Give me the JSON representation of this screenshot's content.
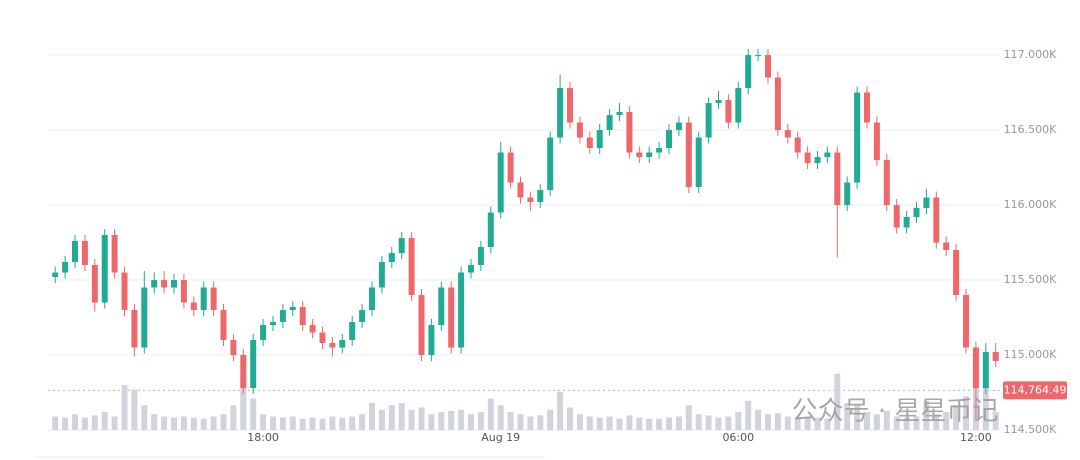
{
  "chart_data": {
    "type": "candlestick",
    "x": [
      "12:45",
      "13:00",
      "13:15",
      "13:30",
      "13:45",
      "14:00",
      "14:15",
      "14:30",
      "14:45",
      "15:00",
      "15:15",
      "15:30",
      "15:45",
      "16:00",
      "16:15",
      "16:30",
      "16:45",
      "17:00",
      "17:15",
      "17:30",
      "17:45",
      "18:00",
      "18:15",
      "18:30",
      "18:45",
      "19:00",
      "19:15",
      "19:30",
      "19:45",
      "20:00",
      "20:15",
      "20:30",
      "20:45",
      "21:00",
      "21:15",
      "21:30",
      "21:45",
      "22:00",
      "22:15",
      "22:30",
      "22:45",
      "23:00",
      "23:15",
      "23:30",
      "23:45",
      "00:00",
      "00:15",
      "00:30",
      "00:45",
      "01:00",
      "01:15",
      "01:30",
      "01:45",
      "02:00",
      "02:15",
      "02:30",
      "02:45",
      "03:00",
      "03:15",
      "03:30",
      "03:45",
      "04:00",
      "04:15",
      "04:30",
      "04:45",
      "05:00",
      "05:15",
      "05:30",
      "05:45",
      "06:00",
      "06:15",
      "06:30",
      "06:45",
      "07:00",
      "07:15",
      "07:30",
      "07:45",
      "08:00",
      "08:15",
      "08:30",
      "08:45",
      "09:00",
      "09:15",
      "09:30",
      "09:45",
      "10:00",
      "10:15",
      "10:30",
      "10:45",
      "11:00",
      "11:15",
      "11:30",
      "11:45",
      "12:00",
      "12:15",
      "12:30"
    ],
    "open": [
      115520,
      115550,
      115620,
      115760,
      115600,
      115350,
      115800,
      115550,
      115300,
      115050,
      115450,
      115500,
      115450,
      115500,
      115350,
      115300,
      115450,
      115300,
      115100,
      115000,
      114780,
      115100,
      115200,
      115220,
      115300,
      115320,
      115200,
      115150,
      115080,
      115050,
      115100,
      115220,
      115300,
      115450,
      115620,
      115680,
      115780,
      115400,
      115000,
      115200,
      115450,
      115050,
      115550,
      115600,
      115720,
      115950,
      116350,
      116150,
      116050,
      116020,
      116100,
      116450,
      116780,
      116550,
      116450,
      116380,
      116500,
      116600,
      116620,
      116350,
      116320,
      116350,
      116380,
      116500,
      116550,
      116120,
      116450,
      116680,
      116700,
      116550,
      116780,
      117000,
      117000,
      116850,
      116500,
      116450,
      116350,
      116280,
      116320,
      116350,
      116000,
      116150,
      116750,
      116550,
      116300,
      116000,
      115850,
      115920,
      115980,
      116050,
      115750,
      115700,
      115400,
      115050,
      114780,
      115020
    ],
    "high": [
      115590,
      115660,
      115800,
      115800,
      115640,
      115840,
      115840,
      115590,
      115340,
      115560,
      115550,
      115560,
      115540,
      115540,
      115390,
      115490,
      115490,
      115340,
      115140,
      115040,
      115140,
      115240,
      115260,
      115340,
      115360,
      115360,
      115240,
      115190,
      115120,
      115140,
      115260,
      115340,
      115490,
      115660,
      115720,
      115820,
      115820,
      115440,
      115240,
      115490,
      115490,
      115590,
      115640,
      115760,
      115990,
      116420,
      116390,
      116190,
      116090,
      116140,
      116490,
      116870,
      116820,
      116590,
      116490,
      116540,
      116640,
      116680,
      116660,
      116390,
      116390,
      116420,
      116540,
      116590,
      116590,
      116490,
      116720,
      116760,
      116740,
      116820,
      117040,
      117040,
      117040,
      116890,
      116540,
      116490,
      116390,
      116360,
      116390,
      116390,
      116190,
      116790,
      116790,
      116590,
      116340,
      116040,
      115960,
      116020,
      116110,
      116090,
      115790,
      115740,
      115440,
      115090,
      115080,
      115080
    ],
    "low": [
      115480,
      115510,
      115580,
      115560,
      115290,
      115310,
      115510,
      115260,
      114990,
      115010,
      115410,
      115410,
      115410,
      115310,
      115260,
      115260,
      115260,
      115060,
      114960,
      114740,
      114740,
      115060,
      115160,
      115180,
      115260,
      115160,
      115110,
      115040,
      114990,
      115010,
      115060,
      115180,
      115260,
      115410,
      115580,
      115640,
      115360,
      114960,
      114960,
      115160,
      115010,
      115010,
      115510,
      115560,
      115680,
      115910,
      116110,
      116010,
      115960,
      115980,
      116060,
      116410,
      116510,
      116410,
      116340,
      116340,
      116460,
      116560,
      116310,
      116280,
      116280,
      116310,
      116340,
      116460,
      116080,
      116080,
      116410,
      116640,
      116510,
      116510,
      116740,
      116960,
      116810,
      116460,
      116410,
      116310,
      116240,
      116240,
      116280,
      115650,
      115960,
      116110,
      116510,
      116260,
      115960,
      115810,
      115810,
      115880,
      115940,
      115710,
      115660,
      115360,
      115010,
      114560,
      114740,
      114920
    ],
    "close": [
      115550,
      115620,
      115760,
      115600,
      115350,
      115800,
      115550,
      115300,
      115050,
      115450,
      115500,
      115450,
      115500,
      115350,
      115300,
      115450,
      115300,
      115100,
      115000,
      114780,
      115100,
      115200,
      115220,
      115300,
      115320,
      115200,
      115150,
      115080,
      115050,
      115100,
      115220,
      115300,
      115450,
      115620,
      115680,
      115780,
      115400,
      115000,
      115200,
      115450,
      115050,
      115550,
      115600,
      115720,
      115950,
      116350,
      116150,
      116050,
      116020,
      116100,
      116450,
      116780,
      116550,
      116450,
      116380,
      116500,
      116600,
      116620,
      116350,
      116320,
      116350,
      116380,
      116500,
      116550,
      116120,
      116450,
      116680,
      116700,
      116550,
      116780,
      117000,
      117000,
      116850,
      116500,
      116450,
      116350,
      116280,
      116320,
      116350,
      116000,
      116150,
      116750,
      116550,
      116300,
      116000,
      115850,
      115920,
      115980,
      116050,
      115750,
      115700,
      115400,
      115050,
      114780,
      115020,
      114960
    ],
    "volume": [
      60,
      55,
      70,
      55,
      65,
      80,
      60,
      200,
      180,
      110,
      70,
      60,
      55,
      60,
      55,
      50,
      60,
      70,
      110,
      250,
      140,
      70,
      60,
      55,
      60,
      50,
      55,
      50,
      60,
      55,
      60,
      70,
      120,
      90,
      110,
      120,
      90,
      100,
      70,
      80,
      85,
      90,
      70,
      80,
      140,
      110,
      80,
      70,
      60,
      65,
      90,
      170,
      100,
      70,
      60,
      55,
      60,
      50,
      65,
      55,
      50,
      50,
      55,
      60,
      110,
      70,
      65,
      55,
      60,
      80,
      130,
      90,
      70,
      75,
      60,
      55,
      60,
      55,
      50,
      250,
      120,
      110,
      80,
      70,
      85,
      60,
      55,
      60,
      130,
      70,
      80,
      110,
      150,
      350,
      200,
      80
    ],
    "volume_ylim": [
      0,
      400
    ],
    "up_color": "#22ab94",
    "down_color": "#f0676b",
    "volume_color": "#d1d4dc",
    "ylim": [
      114300,
      117367
    ],
    "yticks": [
      {
        "value": 117000,
        "label": "117.000K"
      },
      {
        "value": 116500,
        "label": "116.500K"
      },
      {
        "value": 116000,
        "label": "116.000K"
      },
      {
        "value": 115500,
        "label": "115.500K"
      },
      {
        "value": 115000,
        "label": "115.000K"
      },
      {
        "value": 114500,
        "label": "114.500K"
      }
    ],
    "xticks": [
      {
        "value": "18:00",
        "label": "18:00"
      },
      {
        "value": "00:00",
        "label": "Aug 19"
      },
      {
        "value": "06:00",
        "label": "06:00"
      },
      {
        "value": "12:00",
        "label": "12:00"
      }
    ],
    "last_price": {
      "value": 114764.49,
      "label": "114,764.49"
    },
    "grid": true,
    "watermark": "公众号 · 星星币记"
  }
}
